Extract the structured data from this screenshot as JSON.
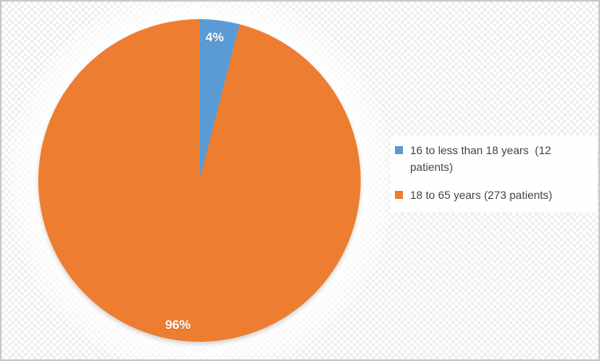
{
  "chart_data": {
    "type": "pie",
    "title": "",
    "legend_position": "right",
    "start_angle_deg": 0,
    "direction": "clockwise",
    "slices": [
      {
        "label": "16 to less than 18 years  (12 patients)",
        "value": 4,
        "display_pct": "4%",
        "patients": 12,
        "color": "#5B9BD5"
      },
      {
        "label": "18 to 65 years (273 patients)",
        "value": 96,
        "display_pct": "96%",
        "patients": 273,
        "color": "#ED7D31"
      }
    ]
  },
  "colors": {
    "slice_small": "#5B9BD5",
    "slice_large": "#ED7D31",
    "data_label_text": "#FFFFFF",
    "legend_text": "#444444",
    "frame_border": "#C9C9C9",
    "background": "#FFFFFF"
  }
}
